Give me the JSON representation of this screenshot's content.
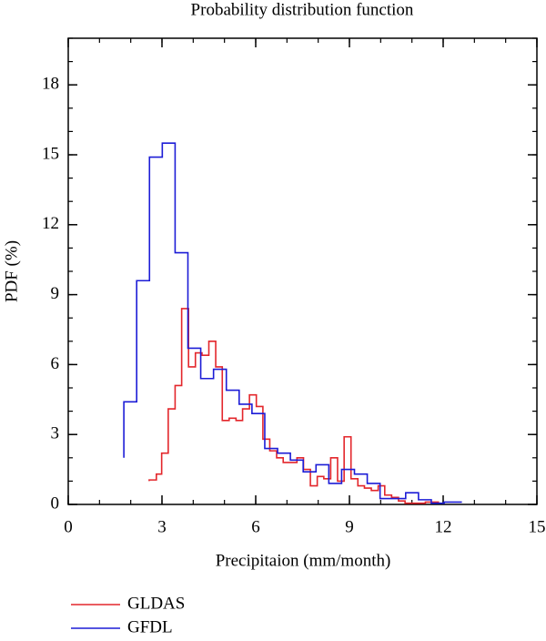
{
  "chart_data": {
    "type": "step",
    "title": "Probability distribution function",
    "xlabel": "Precipitaion (mm/month)",
    "ylabel": "PDF (%)",
    "xlim": [
      0,
      15
    ],
    "ylim": [
      0,
      20
    ],
    "xticks": [
      0,
      3,
      6,
      9,
      12,
      15
    ],
    "yticks": [
      0,
      3,
      6,
      9,
      12,
      15,
      18
    ],
    "xminor": 1,
    "yminor": 1,
    "legend": "bottom-left",
    "series": [
      {
        "name": "GLDAS",
        "color": "#e3262b",
        "x": [
          2.59,
          2.82,
          2.99,
          3.2,
          3.42,
          3.63,
          3.85,
          4.07,
          4.28,
          4.5,
          4.72,
          4.93,
          5.15,
          5.37,
          5.58,
          5.8,
          6.02,
          6.23,
          6.45,
          6.67,
          6.88,
          7.1,
          7.32,
          7.53,
          7.75,
          7.97,
          8.18,
          8.4,
          8.62,
          8.83,
          9.05,
          9.27,
          9.48,
          9.7,
          9.92,
          10.13,
          10.35,
          10.57,
          10.78,
          11.0,
          11.22,
          11.43,
          11.65,
          11.87
        ],
        "values": [
          1.0,
          1.05,
          1.3,
          2.2,
          4.1,
          5.1,
          8.4,
          5.9,
          6.5,
          6.4,
          7.0,
          5.9,
          3.6,
          3.7,
          3.6,
          4.1,
          4.7,
          4.2,
          2.8,
          2.3,
          2.0,
          1.8,
          1.8,
          2.0,
          1.5,
          0.8,
          1.2,
          1.1,
          2.0,
          1.0,
          2.9,
          1.1,
          0.8,
          0.7,
          0.6,
          0.8,
          0.4,
          0.3,
          0.15,
          0.05,
          0.05,
          0.05,
          0.1,
          0.1
        ]
      },
      {
        "name": "GFDL",
        "color": "#1c1cd6",
        "x": [
          1.78,
          2.19,
          2.6,
          3.01,
          3.42,
          3.83,
          4.24,
          4.65,
          5.06,
          5.47,
          5.88,
          6.29,
          6.7,
          7.11,
          7.52,
          7.93,
          8.34,
          8.75,
          9.16,
          9.57,
          9.98,
          10.39,
          10.8,
          11.21,
          11.62,
          12.03,
          12.6
        ],
        "values": [
          2.0,
          4.4,
          9.6,
          14.9,
          15.5,
          10.8,
          6.7,
          5.4,
          5.8,
          4.9,
          4.3,
          3.9,
          2.4,
          2.2,
          1.9,
          1.4,
          1.7,
          0.9,
          1.5,
          1.3,
          0.9,
          0.25,
          0.25,
          0.5,
          0.2,
          0.05,
          0.1
        ]
      }
    ]
  }
}
